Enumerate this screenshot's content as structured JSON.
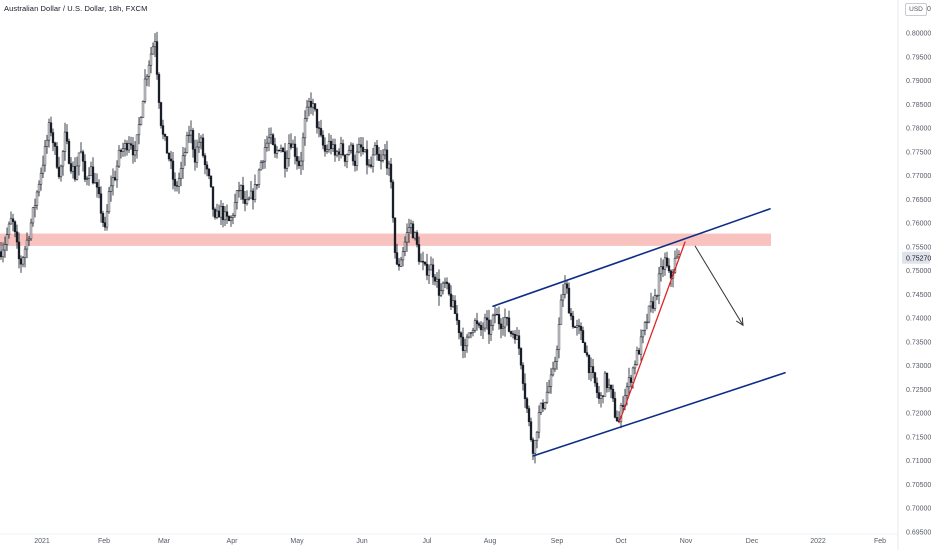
{
  "header": {
    "title": "Australian Dollar / U.S. Dollar, 18h, FXCM",
    "currency": "USD",
    "currency_extra": "0"
  },
  "colors": {
    "candle": "#131722",
    "zone": "#f7b7b3",
    "channel": "#0d2e86",
    "trend": "#e02424",
    "arrow": "#333333",
    "axis_text": "#555a66",
    "price_label_bg": "#e0e3eb"
  },
  "chart_data": {
    "type": "candlestick",
    "symbol": "AUDUSD",
    "timeframe": "18h",
    "source": "FXCM",
    "y_ticks": [
      "0.80000",
      "0.79500",
      "0.79000",
      "0.78500",
      "0.78000",
      "0.77500",
      "0.77000",
      "0.76500",
      "0.76000",
      "0.75500",
      "0.75000",
      "0.74500",
      "0.74000",
      "0.73500",
      "0.73000",
      "0.72500",
      "0.72000",
      "0.71500",
      "0.71000",
      "0.70500",
      "0.70000",
      "0.69500"
    ],
    "x_ticks": [
      "2021",
      "Feb",
      "Mar",
      "Apr",
      "May",
      "Jun",
      "Jul",
      "Aug",
      "Sep",
      "Oct",
      "Nov",
      "Dec",
      "2022",
      "Feb"
    ],
    "last_price": "0.75270",
    "ylim": [
      0.6945,
      0.8055
    ],
    "zone": {
      "from": 0.7552,
      "to": 0.7578
    },
    "price_path": [
      [
        0,
        0.754
      ],
      [
        5,
        0.756
      ],
      [
        12,
        0.761
      ],
      [
        20,
        0.751
      ],
      [
        28,
        0.757
      ],
      [
        34,
        0.763
      ],
      [
        40,
        0.77
      ],
      [
        45,
        0.775
      ],
      [
        50,
        0.781
      ],
      [
        55,
        0.775
      ],
      [
        60,
        0.77
      ],
      [
        65,
        0.778
      ],
      [
        70,
        0.773
      ],
      [
        75,
        0.77
      ],
      [
        80,
        0.776
      ],
      [
        85,
        0.769
      ],
      [
        90,
        0.772
      ],
      [
        95,
        0.768
      ],
      [
        100,
        0.764
      ],
      [
        105,
        0.758
      ],
      [
        110,
        0.768
      ],
      [
        115,
        0.77
      ],
      [
        120,
        0.775
      ],
      [
        125,
        0.776
      ],
      [
        130,
        0.778
      ],
      [
        135,
        0.774
      ],
      [
        140,
        0.782
      ],
      [
        145,
        0.79
      ],
      [
        150,
        0.795
      ],
      [
        155,
        0.799
      ],
      [
        158,
        0.789
      ],
      [
        162,
        0.779
      ],
      [
        166,
        0.776
      ],
      [
        170,
        0.773
      ],
      [
        175,
        0.767
      ],
      [
        180,
        0.77
      ],
      [
        185,
        0.775
      ],
      [
        190,
        0.78
      ],
      [
        195,
        0.774
      ],
      [
        200,
        0.778
      ],
      [
        205,
        0.772
      ],
      [
        210,
        0.768
      ],
      [
        215,
        0.76
      ],
      [
        220,
        0.763
      ],
      [
        225,
        0.761
      ],
      [
        230,
        0.76
      ],
      [
        235,
        0.764
      ],
      [
        240,
        0.768
      ],
      [
        245,
        0.763
      ],
      [
        250,
        0.765
      ],
      [
        255,
        0.767
      ],
      [
        260,
        0.772
      ],
      [
        265,
        0.776
      ],
      [
        270,
        0.778
      ],
      [
        275,
        0.774
      ],
      [
        280,
        0.777
      ],
      [
        285,
        0.773
      ],
      [
        290,
        0.778
      ],
      [
        295,
        0.775
      ],
      [
        300,
        0.772
      ],
      [
        305,
        0.781
      ],
      [
        310,
        0.786
      ],
      [
        315,
        0.783
      ],
      [
        320,
        0.778
      ],
      [
        325,
        0.775
      ],
      [
        330,
        0.777
      ],
      [
        335,
        0.774
      ],
      [
        340,
        0.776
      ],
      [
        345,
        0.774
      ],
      [
        350,
        0.776
      ],
      [
        355,
        0.773
      ],
      [
        360,
        0.776
      ],
      [
        365,
        0.774
      ],
      [
        370,
        0.771
      ],
      [
        375,
        0.775
      ],
      [
        380,
        0.772
      ],
      [
        385,
        0.775
      ],
      [
        390,
        0.77
      ],
      [
        393,
        0.762
      ],
      [
        396,
        0.75
      ],
      [
        400,
        0.752
      ],
      [
        405,
        0.756
      ],
      [
        410,
        0.76
      ],
      [
        415,
        0.757
      ],
      [
        420,
        0.752
      ],
      [
        425,
        0.75
      ],
      [
        430,
        0.751
      ],
      [
        435,
        0.749
      ],
      [
        440,
        0.745
      ],
      [
        445,
        0.747
      ],
      [
        450,
        0.744
      ],
      [
        455,
        0.741
      ],
      [
        460,
        0.737
      ],
      [
        465,
        0.733
      ],
      [
        470,
        0.738
      ],
      [
        475,
        0.739
      ],
      [
        480,
        0.737
      ],
      [
        485,
        0.739
      ],
      [
        490,
        0.737
      ],
      [
        495,
        0.741
      ],
      [
        500,
        0.739
      ],
      [
        505,
        0.74
      ],
      [
        510,
        0.737
      ],
      [
        515,
        0.737
      ],
      [
        520,
        0.733
      ],
      [
        525,
        0.724
      ],
      [
        530,
        0.716
      ],
      [
        534,
        0.712
      ],
      [
        538,
        0.719
      ],
      [
        543,
        0.722
      ],
      [
        548,
        0.725
      ],
      [
        553,
        0.728
      ],
      [
        558,
        0.736
      ],
      [
        562,
        0.745
      ],
      [
        566,
        0.747
      ],
      [
        570,
        0.741
      ],
      [
        575,
        0.738
      ],
      [
        580,
        0.737
      ],
      [
        585,
        0.734
      ],
      [
        590,
        0.729
      ],
      [
        595,
        0.726
      ],
      [
        600,
        0.722
      ],
      [
        605,
        0.727
      ],
      [
        610,
        0.725
      ],
      [
        615,
        0.72
      ],
      [
        619,
        0.718
      ],
      [
        624,
        0.724
      ],
      [
        630,
        0.727
      ],
      [
        635,
        0.731
      ],
      [
        640,
        0.734
      ],
      [
        645,
        0.738
      ],
      [
        650,
        0.742
      ],
      [
        655,
        0.744
      ],
      [
        660,
        0.749
      ],
      [
        665,
        0.752
      ],
      [
        670,
        0.748
      ],
      [
        675,
        0.752
      ],
      [
        679,
        0.7527
      ]
    ],
    "annotations": {
      "channel_upper": [
        [
          493,
          0.7425
        ],
        [
          770,
          0.763
        ]
      ],
      "channel_lower": [
        [
          533,
          0.711
        ],
        [
          785,
          0.7285
        ]
      ],
      "red_trend": [
        [
          619,
          0.718
        ],
        [
          685,
          0.756
        ]
      ],
      "arrow": [
        [
          695,
          0.7552
        ],
        [
          743,
          0.7385
        ]
      ]
    }
  }
}
